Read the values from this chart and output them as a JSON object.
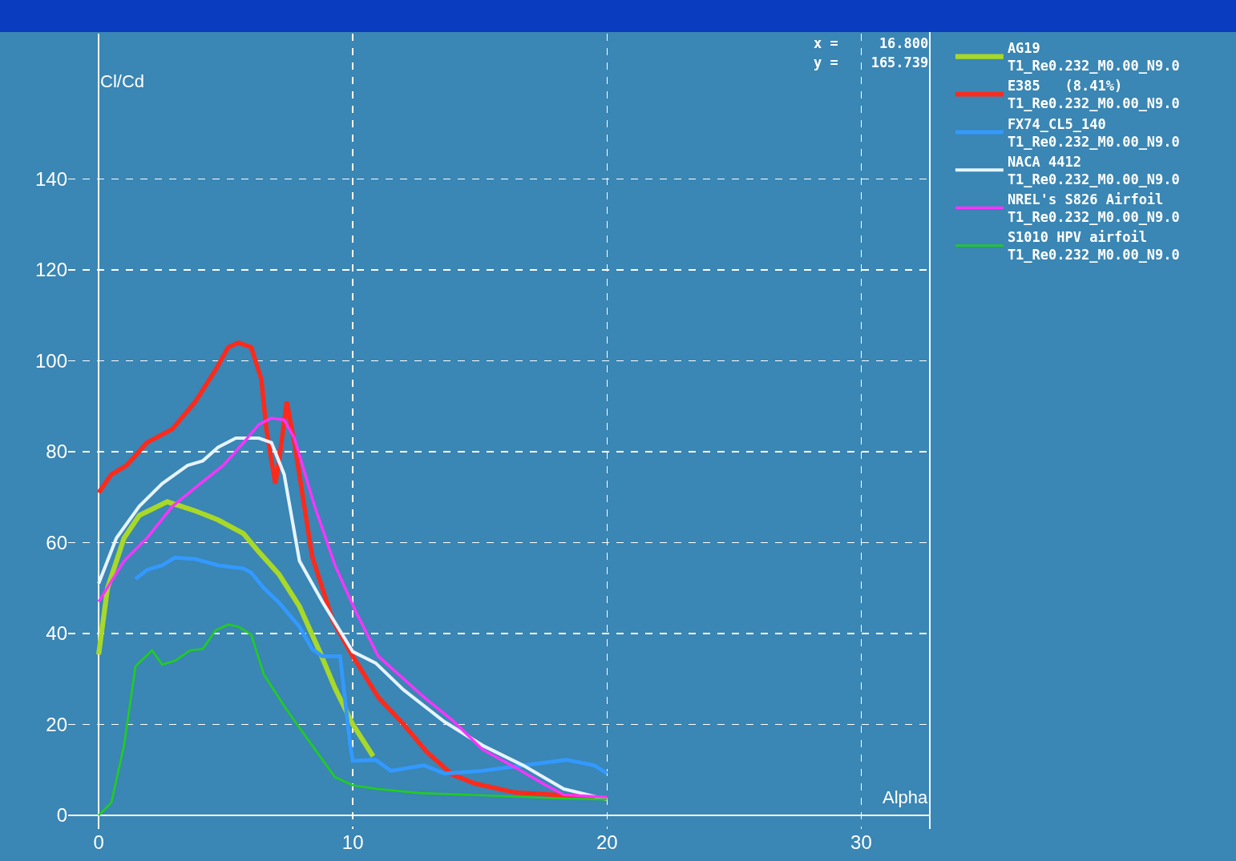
{
  "chart_data": {
    "type": "line",
    "xlabel": "Alpha",
    "ylabel": "Cl/Cd",
    "xlim": [
      -1.2,
      32.7
    ],
    "ylim": [
      -3,
      172
    ],
    "xticks": [
      0,
      10,
      20,
      30
    ],
    "yticks": [
      0,
      20,
      40,
      60,
      80,
      100,
      120,
      140
    ],
    "grid": true,
    "legend": "right",
    "marker": "none",
    "line_style": "solid",
    "annotations": [
      "x =     16.800",
      "y =    165.739"
    ],
    "series": [
      {
        "name": "AG19\nT1_Re0.232_M0.00_N9.0",
        "color": "#a8d828",
        "x": [
          0,
          0.35,
          1,
          1.6,
          2.7,
          3.8,
          4.7,
          5.7,
          6.3,
          7.1,
          7.9,
          8.7,
          9.3,
          10,
          10.8
        ],
        "values": [
          35.4,
          50,
          61,
          66,
          69,
          67,
          65,
          62,
          58,
          53,
          46,
          36,
          28,
          20,
          13
        ]
      },
      {
        "name": "E385   (8.41%)\nT1_Re0.232_M0.00_N9.0",
        "color": "#ff2a1a",
        "x": [
          0,
          0.5,
          1.1,
          1.9,
          2.9,
          3.8,
          4.6,
          5.1,
          5.5,
          6,
          6.4,
          6.6,
          6.95,
          7.1,
          7.4,
          7.7,
          8.4,
          9.2,
          10,
          11,
          12,
          12.9,
          13.9,
          14.8,
          16.4,
          18.3,
          20
        ],
        "values": [
          71,
          75,
          77,
          82,
          85,
          91,
          98,
          103,
          104,
          103,
          96,
          85,
          73,
          78,
          91,
          82,
          57,
          43,
          35,
          26,
          20,
          14,
          9,
          7,
          5,
          4.4,
          3.8
        ]
      },
      {
        "name": "FX74_CL5_140\nT1_Re0.232_M0.00_N9.0",
        "color": "#3399ff",
        "x": [
          1.45,
          1.9,
          2.5,
          3,
          3.8,
          4.7,
          5.7,
          6,
          6.5,
          7.1,
          7.9,
          8.4,
          8.8,
          9.5,
          9.9,
          10,
          10.9,
          11.5,
          12.8,
          13.6,
          15.1,
          16.7,
          18.4,
          19.5,
          20
        ],
        "values": [
          52,
          54,
          55,
          56.7,
          56.4,
          55,
          54.3,
          53.4,
          50,
          46.8,
          41.5,
          36.6,
          35,
          35,
          15.4,
          12,
          12.2,
          9.8,
          11,
          9.2,
          9.8,
          11,
          12.2,
          11,
          9.2
        ]
      },
      {
        "name": "NACA 4412\nT1_Re0.232_M0.00_N9.0",
        "color": "#e6f4ff",
        "x": [
          0,
          0.7,
          1.6,
          2.5,
          3.5,
          4.1,
          4.7,
          5.4,
          6.3,
          6.8,
          7.3,
          7.9,
          8.8,
          10,
          10.9,
          12,
          13.6,
          15.1,
          16.7,
          18.3,
          20
        ],
        "values": [
          51,
          61,
          68,
          73,
          77,
          78,
          81,
          83,
          83,
          82,
          75,
          56,
          47,
          36,
          33.5,
          27.6,
          20.6,
          15.4,
          11,
          5.8,
          3.5
        ]
      },
      {
        "name": "NREL's S826 Airfoil\nT1_Re0.232_M0.00_N9.0",
        "color": "#ff33ff",
        "x": [
          0,
          1,
          1.9,
          2.9,
          4,
          4.9,
          5.7,
          6.3,
          6.8,
          7.3,
          7.7,
          8.5,
          9.3,
          10.1,
          11,
          12,
          12.8,
          13.9,
          15.1,
          16.4,
          17.6,
          18.3,
          20
        ],
        "values": [
          47,
          56,
          61,
          68,
          73,
          77,
          82,
          86,
          87.4,
          87,
          83,
          68,
          55,
          45,
          35,
          30,
          26,
          21,
          14.5,
          10.5,
          6.6,
          4.5,
          4
        ]
      },
      {
        "name": "S1010 HPV airfoil\nT1_Re0.232_M0.00_N9.0",
        "color": "#22cc22",
        "x": [
          0,
          0.5,
          1,
          1.45,
          2.1,
          2.5,
          3,
          3.6,
          4.1,
          4.6,
          5.1,
          5.5,
          6,
          6.5,
          7.4,
          8.4,
          9.3,
          10,
          11,
          12.6,
          15.1,
          18.3,
          20
        ],
        "values": [
          0,
          2.8,
          15.4,
          32.8,
          36.3,
          33.2,
          34,
          36.3,
          36.6,
          40.7,
          42,
          41.5,
          39.8,
          31,
          23.2,
          15.4,
          8.4,
          6.6,
          5.8,
          4.9,
          4.4,
          3.7,
          3.5
        ]
      }
    ]
  }
}
